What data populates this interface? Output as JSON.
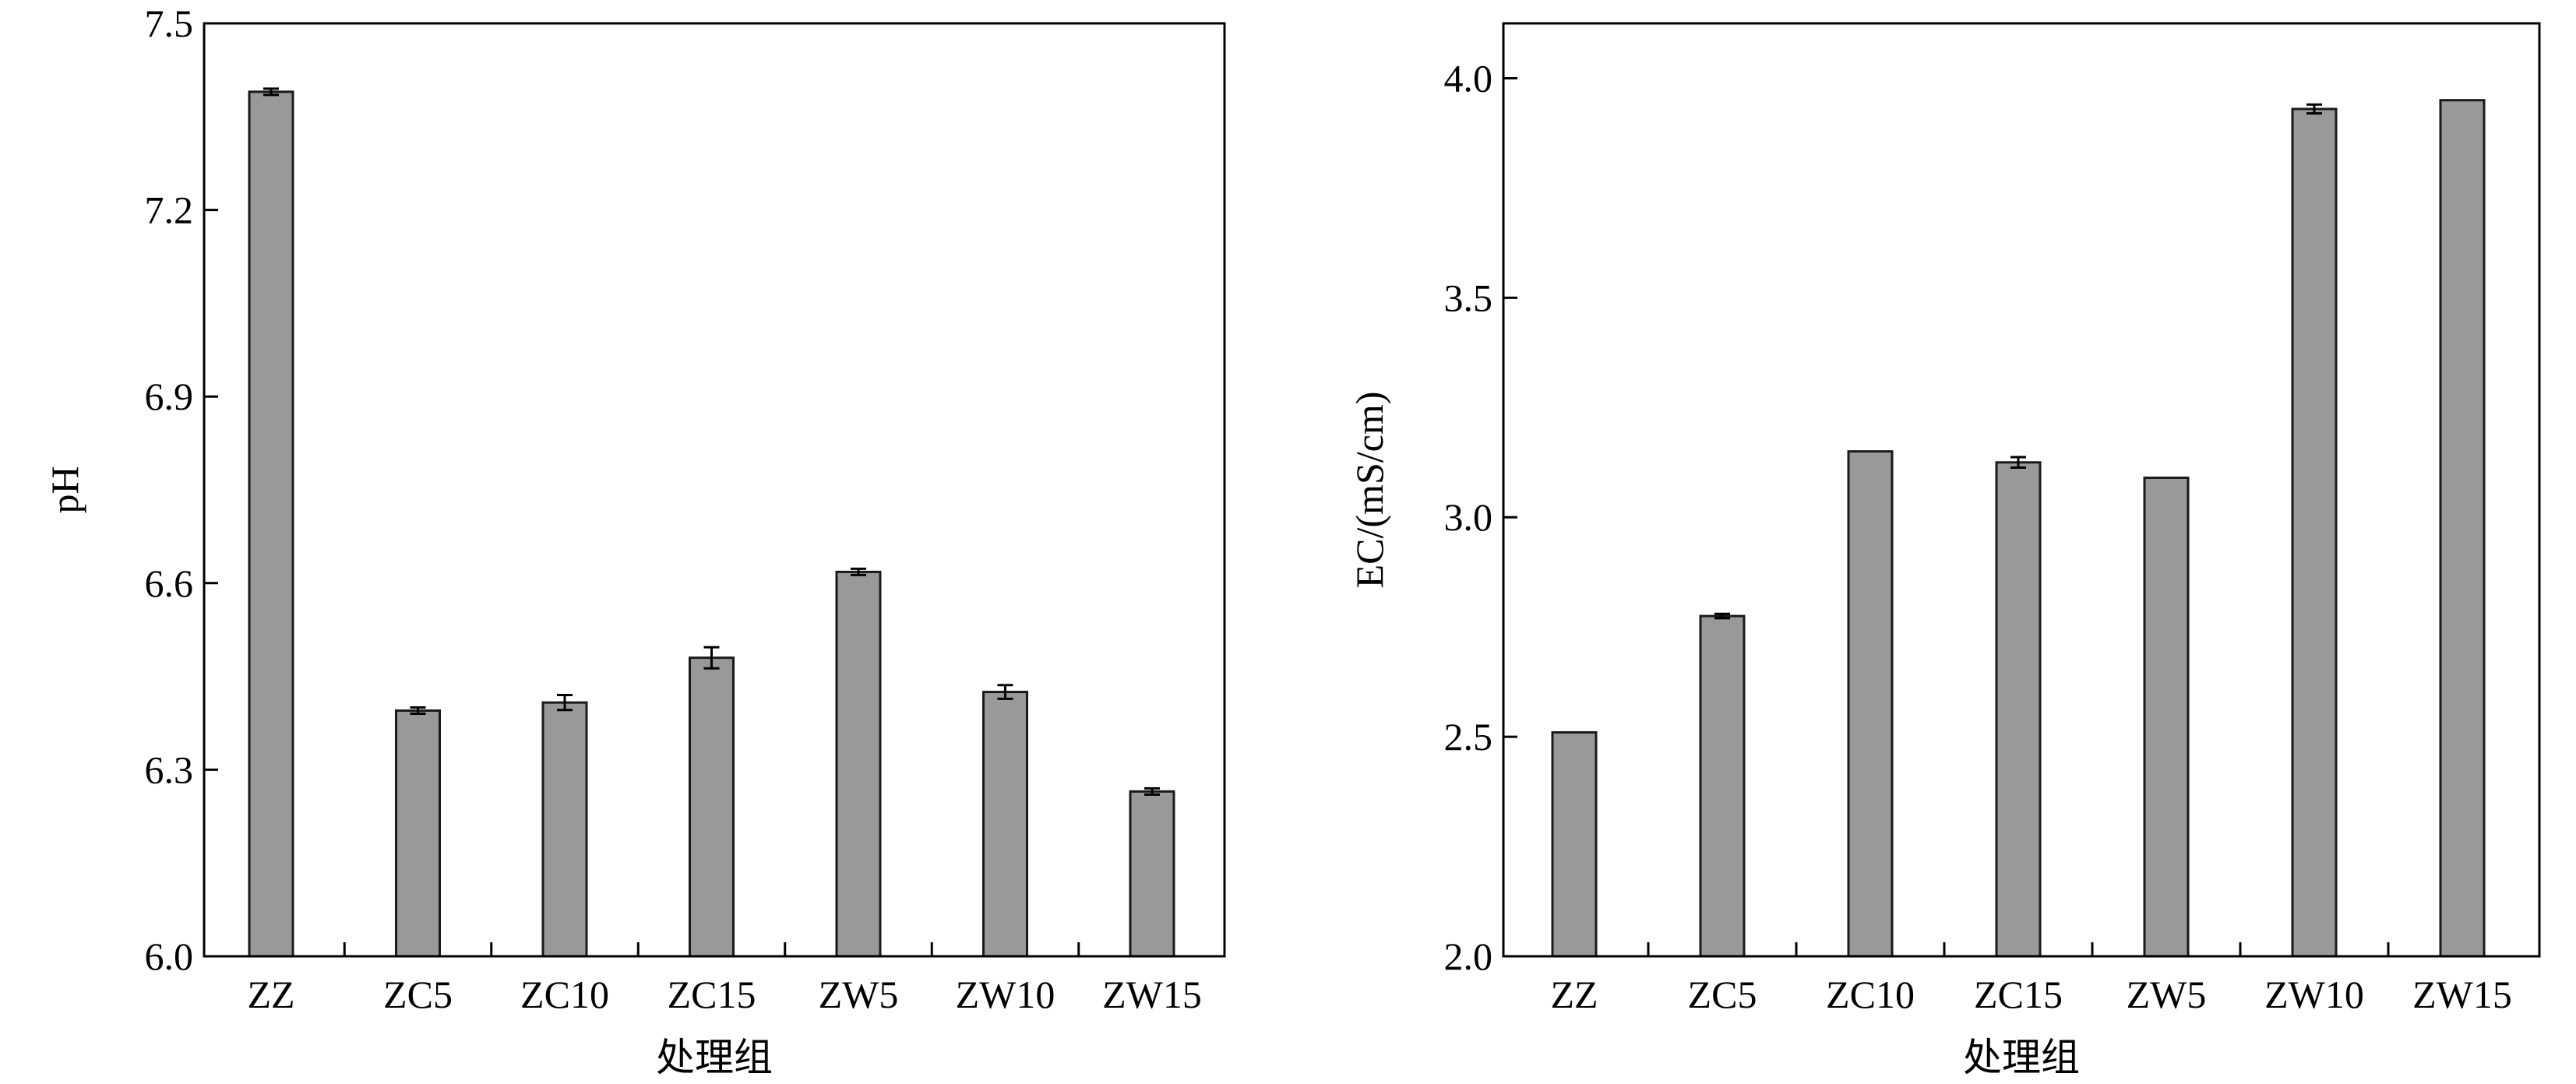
{
  "chart_data": [
    {
      "type": "bar",
      "title": "",
      "xlabel": "处理组",
      "ylabel": "pH",
      "categories": [
        "ZZ",
        "ZC5",
        "ZC10",
        "ZC15",
        "ZW5",
        "ZW10",
        "ZW15"
      ],
      "values": [
        7.39,
        6.395,
        6.408,
        6.48,
        6.618,
        6.425,
        6.265
      ],
      "errors": [
        0.005,
        0.005,
        0.012,
        0.017,
        0.005,
        0.011,
        0.005
      ],
      "ylim": [
        6.0,
        7.5
      ],
      "yticks": [
        "6.0",
        "6.3",
        "6.6",
        "6.9",
        "7.2",
        "7.5"
      ],
      "grid": false,
      "bar_color": "#999999"
    },
    {
      "type": "bar",
      "title": "",
      "xlabel": "处理组",
      "ylabel": "EC/(mS/cm)",
      "categories": [
        "ZZ",
        "ZC5",
        "ZC10",
        "ZC15",
        "ZW5",
        "ZW10",
        "ZW15"
      ],
      "values": [
        2.51,
        2.775,
        3.15,
        3.125,
        3.09,
        3.93,
        3.95
      ],
      "errors": [
        0,
        0.005,
        0,
        0.012,
        0,
        0.01,
        0
      ],
      "ylim": [
        2.0,
        4.125
      ],
      "yticks": [
        "2.0",
        "2.5",
        "3.0",
        "3.5",
        "4.0"
      ],
      "grid": false,
      "bar_color": "#999999"
    }
  ]
}
